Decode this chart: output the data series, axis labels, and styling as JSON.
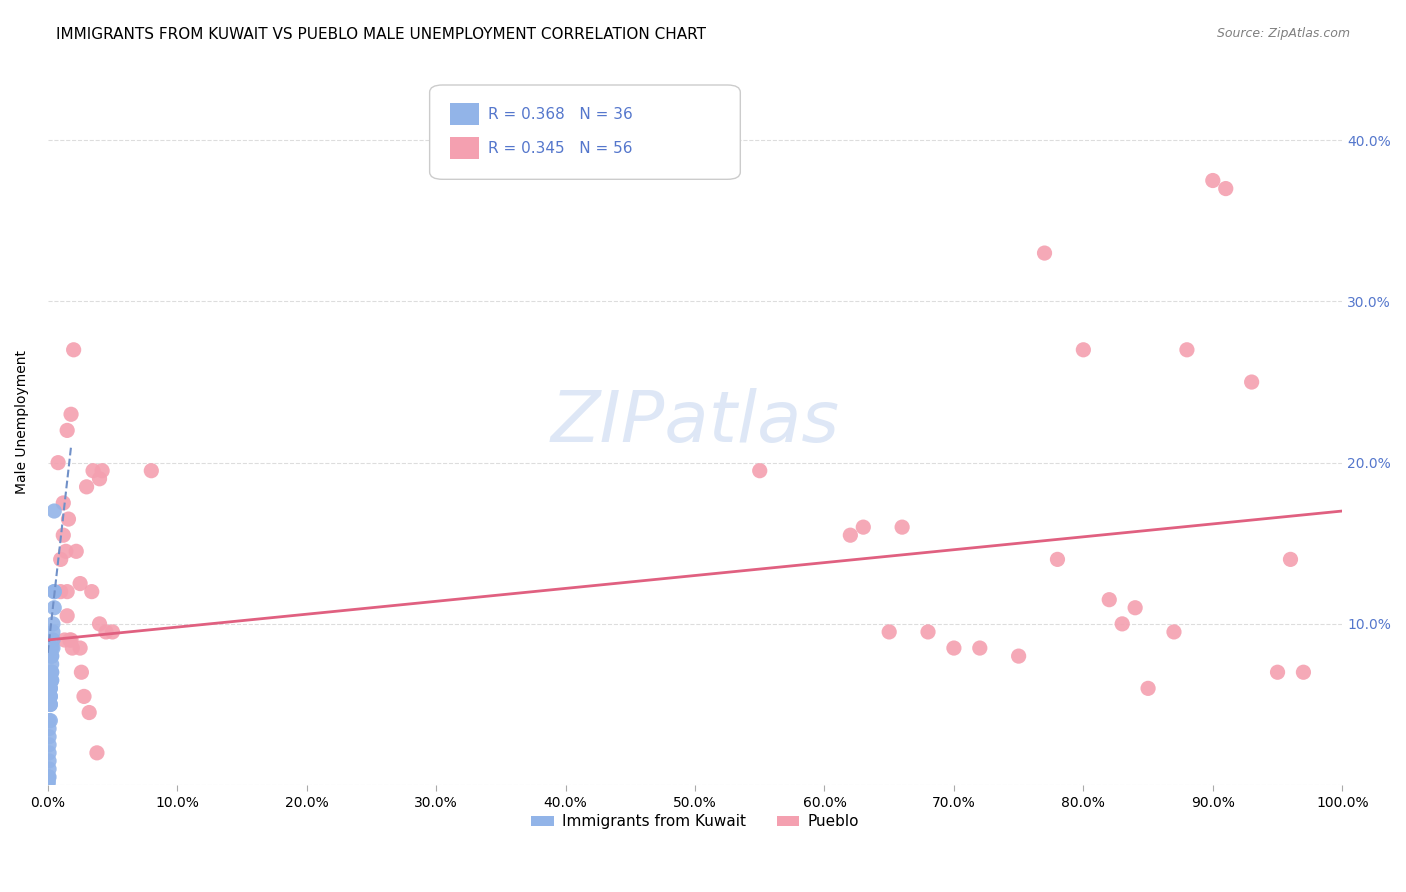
{
  "title": "IMMIGRANTS FROM KUWAIT VS PUEBLO MALE UNEMPLOYMENT CORRELATION CHART",
  "source": "Source: ZipAtlas.com",
  "xlabel": "",
  "ylabel": "Male Unemployment",
  "legend_labels": [
    "Immigrants from Kuwait",
    "Pueblo"
  ],
  "legend_r_n": [
    {
      "r": "R = 0.368",
      "n": "N = 36"
    },
    {
      "r": "R = 0.345",
      "n": "N = 56"
    }
  ],
  "color_blue": "#92b4e8",
  "color_pink": "#f4a0b0",
  "trendline_blue": "#7090c8",
  "trendline_pink": "#e06080",
  "watermark": "ZIPatlas",
  "xlim": [
    0.0,
    1.0
  ],
  "ylim": [
    0.0,
    0.45
  ],
  "xticks": [
    0.0,
    0.1,
    0.2,
    0.3,
    0.4,
    0.5,
    0.6,
    0.7,
    0.8,
    0.9,
    1.0
  ],
  "yticks": [
    0.0,
    0.1,
    0.2,
    0.3,
    0.4
  ],
  "xticklabels": [
    "0.0%",
    "10.0%",
    "20.0%",
    "30.0%",
    "40.0%",
    "50.0%",
    "60.0%",
    "70.0%",
    "80.0%",
    "90.0%",
    "100.0%"
  ],
  "yticklabels": [
    "",
    "10.0%",
    "20.0%",
    "30.0%",
    "40.0%"
  ],
  "blue_points": [
    [
      0.005,
      0.17
    ],
    [
      0.005,
      0.12
    ],
    [
      0.005,
      0.12
    ],
    [
      0.005,
      0.11
    ],
    [
      0.004,
      0.1
    ],
    [
      0.004,
      0.095
    ],
    [
      0.004,
      0.09
    ],
    [
      0.004,
      0.085
    ],
    [
      0.003,
      0.085
    ],
    [
      0.003,
      0.08
    ],
    [
      0.003,
      0.08
    ],
    [
      0.003,
      0.075
    ],
    [
      0.003,
      0.07
    ],
    [
      0.003,
      0.07
    ],
    [
      0.003,
      0.065
    ],
    [
      0.003,
      0.065
    ],
    [
      0.002,
      0.065
    ],
    [
      0.002,
      0.06
    ],
    [
      0.002,
      0.06
    ],
    [
      0.002,
      0.055
    ],
    [
      0.002,
      0.055
    ],
    [
      0.002,
      0.05
    ],
    [
      0.002,
      0.05
    ],
    [
      0.002,
      0.04
    ],
    [
      0.001,
      0.04
    ],
    [
      0.001,
      0.035
    ],
    [
      0.001,
      0.03
    ],
    [
      0.001,
      0.025
    ],
    [
      0.001,
      0.02
    ],
    [
      0.001,
      0.015
    ],
    [
      0.001,
      0.01
    ],
    [
      0.001,
      0.005
    ],
    [
      0.0005,
      0.005
    ],
    [
      0.0005,
      0.002
    ],
    [
      0.0,
      0.0
    ],
    [
      0.0,
      0.0
    ]
  ],
  "pink_points": [
    [
      0.008,
      0.2
    ],
    [
      0.01,
      0.14
    ],
    [
      0.01,
      0.12
    ],
    [
      0.012,
      0.175
    ],
    [
      0.012,
      0.155
    ],
    [
      0.013,
      0.09
    ],
    [
      0.014,
      0.145
    ],
    [
      0.015,
      0.12
    ],
    [
      0.015,
      0.105
    ],
    [
      0.016,
      0.165
    ],
    [
      0.017,
      0.09
    ],
    [
      0.018,
      0.09
    ],
    [
      0.019,
      0.085
    ],
    [
      0.02,
      0.27
    ],
    [
      0.022,
      0.145
    ],
    [
      0.025,
      0.125
    ],
    [
      0.025,
      0.085
    ],
    [
      0.026,
      0.07
    ],
    [
      0.028,
      0.055
    ],
    [
      0.03,
      0.185
    ],
    [
      0.032,
      0.045
    ],
    [
      0.034,
      0.12
    ],
    [
      0.035,
      0.195
    ],
    [
      0.038,
      0.02
    ],
    [
      0.04,
      0.19
    ],
    [
      0.042,
      0.195
    ],
    [
      0.045,
      0.095
    ],
    [
      0.05,
      0.095
    ],
    [
      0.015,
      0.22
    ],
    [
      0.04,
      0.1
    ],
    [
      0.018,
      0.23
    ],
    [
      0.08,
      0.195
    ],
    [
      0.55,
      0.195
    ],
    [
      0.62,
      0.155
    ],
    [
      0.63,
      0.16
    ],
    [
      0.65,
      0.095
    ],
    [
      0.66,
      0.16
    ],
    [
      0.68,
      0.095
    ],
    [
      0.7,
      0.085
    ],
    [
      0.72,
      0.085
    ],
    [
      0.75,
      0.08
    ],
    [
      0.77,
      0.33
    ],
    [
      0.78,
      0.14
    ],
    [
      0.8,
      0.27
    ],
    [
      0.82,
      0.115
    ],
    [
      0.83,
      0.1
    ],
    [
      0.84,
      0.11
    ],
    [
      0.85,
      0.06
    ],
    [
      0.87,
      0.095
    ],
    [
      0.88,
      0.27
    ],
    [
      0.9,
      0.375
    ],
    [
      0.91,
      0.37
    ],
    [
      0.93,
      0.25
    ],
    [
      0.95,
      0.07
    ],
    [
      0.96,
      0.14
    ],
    [
      0.97,
      0.07
    ]
  ],
  "blue_trendline": [
    [
      0.0,
      0.082
    ],
    [
      0.018,
      0.21
    ]
  ],
  "pink_trendline": [
    [
      0.0,
      0.09
    ],
    [
      1.0,
      0.17
    ]
  ],
  "title_fontsize": 11,
  "source_fontsize": 9,
  "axis_label_fontsize": 10,
  "tick_fontsize": 10,
  "legend_fontsize": 11,
  "watermark_color": "#c8d8f0",
  "watermark_fontsize": 52,
  "grid_color": "#dddddd",
  "background_color": "#ffffff",
  "right_ytick_color": "#5577cc"
}
